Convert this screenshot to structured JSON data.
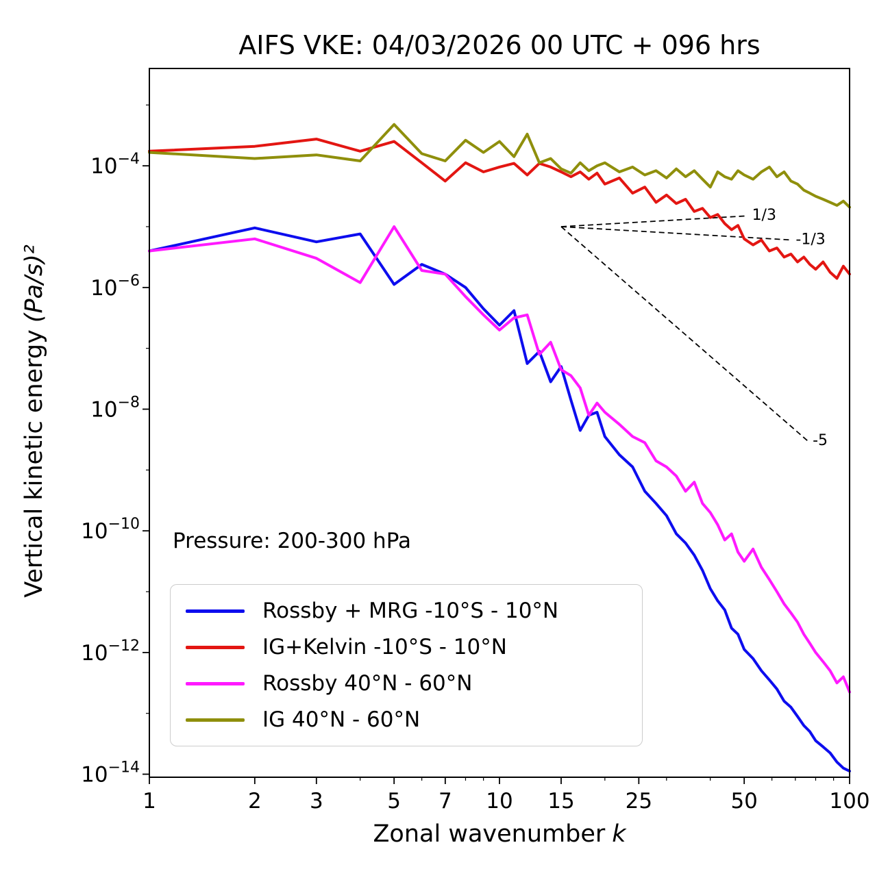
{
  "title": "AIFS VKE: 04/03/2026 00 UTC + 096 hrs",
  "axes": {
    "xlabel_text": "Zonal wavenumber",
    "xlabel_math": "k",
    "ylabel_text": "Vertical kinetic energy",
    "ylabel_math": "(Pa/s)²"
  },
  "annotation": {
    "pressure_label": "Pressure: 200-300 hPa"
  },
  "chart_data": {
    "type": "line",
    "title": "AIFS VKE: 04/03/2026 00 UTC + 096 hrs",
    "xlabel": "Zonal wavenumber k",
    "ylabel": "Vertical kinetic energy (Pa/s)²",
    "x_scale": "log",
    "y_scale": "log",
    "xlim": [
      1,
      100
    ],
    "ylim_exponents": [
      -14.05,
      -2.4
    ],
    "grid": false,
    "legend_position": "lower-left",
    "x_ticks": [
      1,
      2,
      3,
      5,
      7,
      10,
      15,
      25,
      50,
      100
    ],
    "x_tick_labels": [
      "1",
      "2",
      "3",
      "5",
      "7",
      "10",
      "15",
      "25",
      "50",
      "100"
    ],
    "x_minor_ticks": [
      4,
      6,
      8,
      9,
      20,
      30,
      40,
      60,
      70,
      80,
      90
    ],
    "y_tick_exponents": [
      -4,
      -6,
      -8,
      -10,
      -12,
      -14
    ],
    "y_minor_tick_exponents": [
      -3,
      -5,
      -7,
      -9,
      -11,
      -13
    ],
    "k": [
      1,
      2,
      3,
      4,
      5,
      6,
      7,
      8,
      9,
      10,
      11,
      12,
      13,
      14,
      15,
      16,
      17,
      18,
      19,
      20,
      22,
      24,
      26,
      28,
      30,
      32,
      34,
      36,
      38,
      40,
      42,
      44,
      46,
      48,
      50,
      53,
      56,
      59,
      62,
      65,
      68,
      71,
      74,
      77,
      80,
      84,
      88,
      92,
      96,
      100
    ],
    "series": [
      {
        "name": "Rossby + MRG -10°S - 10°N",
        "color": "#0d0dee",
        "log10_vke": [
          -5.4,
          -5.02,
          -5.25,
          -5.12,
          -5.95,
          -5.62,
          -5.78,
          -6.0,
          -6.35,
          -6.62,
          -6.38,
          -7.25,
          -7.05,
          -7.55,
          -7.3,
          -7.85,
          -8.35,
          -8.1,
          -8.05,
          -8.45,
          -8.75,
          -8.95,
          -9.35,
          -9.55,
          -9.75,
          -10.05,
          -10.2,
          -10.4,
          -10.65,
          -10.95,
          -11.15,
          -11.3,
          -11.6,
          -11.7,
          -11.95,
          -12.1,
          -12.3,
          -12.45,
          -12.6,
          -12.8,
          -12.9,
          -13.05,
          -13.2,
          -13.3,
          -13.45,
          -13.55,
          -13.65,
          -13.8,
          -13.9,
          -13.95
        ]
      },
      {
        "name": "IG+Kelvin -10°S - 10°N",
        "color": "#e31612",
        "log10_vke": [
          -3.76,
          -3.68,
          -3.56,
          -3.76,
          -3.6,
          -3.95,
          -4.25,
          -3.95,
          -4.1,
          -4.02,
          -3.96,
          -4.15,
          -3.96,
          -4.02,
          -4.1,
          -4.18,
          -4.1,
          -4.22,
          -4.12,
          -4.3,
          -4.2,
          -4.45,
          -4.35,
          -4.6,
          -4.48,
          -4.62,
          -4.55,
          -4.75,
          -4.7,
          -4.85,
          -4.8,
          -4.95,
          -5.05,
          -4.98,
          -5.2,
          -5.3,
          -5.22,
          -5.4,
          -5.35,
          -5.5,
          -5.45,
          -5.58,
          -5.5,
          -5.62,
          -5.7,
          -5.58,
          -5.75,
          -5.85,
          -5.65,
          -5.78
        ]
      },
      {
        "name": "Rossby 40°N - 60°N",
        "color": "#ff1aff",
        "log10_vke": [
          -5.4,
          -5.2,
          -5.52,
          -5.92,
          -5.0,
          -5.72,
          -5.78,
          -6.15,
          -6.45,
          -6.7,
          -6.5,
          -6.45,
          -7.1,
          -6.9,
          -7.35,
          -7.45,
          -7.65,
          -8.1,
          -7.9,
          -8.05,
          -8.25,
          -8.45,
          -8.55,
          -8.85,
          -8.95,
          -9.1,
          -9.35,
          -9.2,
          -9.55,
          -9.7,
          -9.9,
          -10.15,
          -10.05,
          -10.35,
          -10.5,
          -10.3,
          -10.6,
          -10.8,
          -11.0,
          -11.2,
          -11.35,
          -11.5,
          -11.7,
          -11.85,
          -12.0,
          -12.15,
          -12.3,
          -12.5,
          -12.4,
          -12.65
        ]
      },
      {
        "name": "IG 40°N - 60°N",
        "color": "#8f8f0c",
        "log10_vke": [
          -3.78,
          -3.88,
          -3.82,
          -3.92,
          -3.32,
          -3.8,
          -3.92,
          -3.58,
          -3.78,
          -3.6,
          -3.85,
          -3.48,
          -3.95,
          -3.88,
          -4.05,
          -4.12,
          -3.95,
          -4.08,
          -4.0,
          -3.95,
          -4.1,
          -4.02,
          -4.15,
          -4.08,
          -4.2,
          -4.05,
          -4.18,
          -4.08,
          -4.22,
          -4.35,
          -4.1,
          -4.18,
          -4.22,
          -4.08,
          -4.15,
          -4.22,
          -4.1,
          -4.02,
          -4.18,
          -4.1,
          -4.25,
          -4.3,
          -4.4,
          -4.45,
          -4.5,
          -4.55,
          -4.6,
          -4.65,
          -4.58,
          -4.68
        ]
      }
    ],
    "reference_lines": [
      {
        "label": "1/3",
        "slope": 0.3333,
        "k_start": 15,
        "k_end": 51,
        "log10_v_start": -5.0
      },
      {
        "label": "-1/3",
        "slope": -0.3333,
        "k_start": 15,
        "k_end": 68,
        "log10_v_start": -5.0
      },
      {
        "label": "-5",
        "slope": -5.0,
        "k_start": 15,
        "k_end": 76,
        "log10_v_start": -5.0
      }
    ]
  }
}
